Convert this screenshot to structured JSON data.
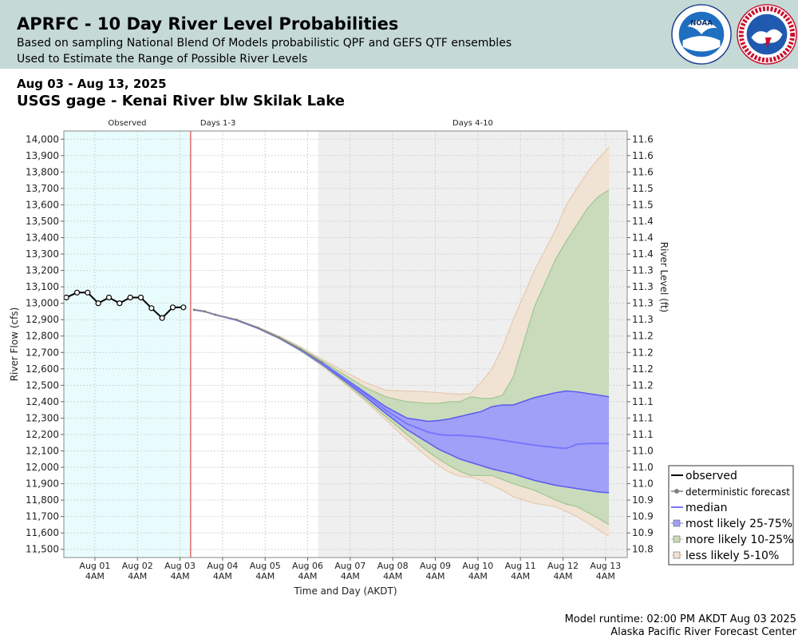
{
  "header": {
    "title": "APRFC - 10 Day River Level Probabilities",
    "subtitle_1": "Based on sampling National Blend Of Models probabilistic QPF and GEFS QTF ensembles",
    "subtitle_2": "Used to Estimate the Range of Possible River Levels",
    "logos": [
      "noaa-logo",
      "national-weather-service-logo"
    ]
  },
  "date_range": "Aug 03 - Aug 13, 2025",
  "gage": "USGS gage - Kenai River blw Skilak Lake",
  "footer": {
    "runtime": "Model runtime: 02:00 PM AKDT Aug 03 2025",
    "center": "Alaska Pacific River Forecast Center"
  },
  "colors": {
    "observed_bg": "#e9fcfd",
    "days4_10_bg": "#efefef",
    "now_line": "#e02020",
    "observed": "#000000",
    "deterministic": "#808080",
    "median": "#7777ff",
    "band_25_75": "#a0a0f8",
    "band_10_25": "#c9dbbb",
    "band_5_10": "#f0e3d4"
  },
  "chart_data": {
    "type": "line",
    "xlabel": "Time and Day (AKDT)",
    "ylabel_left": "River Flow (cfs)",
    "ylabel_right": "River Level (ft)",
    "ylim": [
      11450,
      14050
    ],
    "x_unit": "days after Aug 01 00:00 AKDT",
    "xlim": [
      -0.56,
      12.68
    ],
    "periods": [
      {
        "label": "Observed",
        "start": -0.56,
        "end": 2.42
      },
      {
        "label": "Days 1-3",
        "start": 2.42,
        "end": 5.42
      },
      {
        "label": "Days 4-10",
        "start": 5.42,
        "end": 12.68
      }
    ],
    "x_ticks": [
      {
        "day": "Aug 01",
        "time": "4AM",
        "x": 0.17
      },
      {
        "day": "Aug 02",
        "time": "4AM",
        "x": 1.17
      },
      {
        "day": "Aug 03",
        "time": "4AM",
        "x": 2.17
      },
      {
        "day": "Aug 04",
        "time": "4AM",
        "x": 3.17
      },
      {
        "day": "Aug 05",
        "time": "4AM",
        "x": 4.17
      },
      {
        "day": "Aug 06",
        "time": "4AM",
        "x": 5.17
      },
      {
        "day": "Aug 07",
        "time": "4AM",
        "x": 6.17
      },
      {
        "day": "Aug 08",
        "time": "4AM",
        "x": 7.17
      },
      {
        "day": "Aug 09",
        "time": "4AM",
        "x": 8.17
      },
      {
        "day": "Aug 10",
        "time": "4AM",
        "x": 9.17
      },
      {
        "day": "Aug 11",
        "time": "4AM",
        "x": 10.17
      },
      {
        "day": "Aug 12",
        "time": "4AM",
        "x": 11.17
      },
      {
        "day": "Aug 13",
        "time": "4AM",
        "x": 12.17
      }
    ],
    "y_ticks_left": [
      "11,500",
      "11,600",
      "11,700",
      "11,800",
      "11,900",
      "12,000",
      "12,100",
      "12,200",
      "12,300",
      "12,400",
      "12,500",
      "12,600",
      "12,700",
      "12,800",
      "12,900",
      "13,000",
      "13,100",
      "13,200",
      "13,300",
      "13,400",
      "13,500",
      "13,600",
      "13,700",
      "13,800",
      "13,900",
      "14,000"
    ],
    "y_ticks_right": [
      "10.8",
      "10.9",
      "10.9",
      "10.9",
      "11.0",
      "11.0",
      "11.0",
      "11.1",
      "11.1",
      "11.1",
      "11.2",
      "11.2",
      "11.2",
      "11.2",
      "11.3",
      "11.3",
      "11.3",
      "11.3",
      "11.4",
      "11.4",
      "11.4",
      "11.5",
      "11.5",
      "11.6",
      "11.6",
      "11.6"
    ],
    "legend": [
      {
        "label": "observed",
        "key": "observed"
      },
      {
        "label": "deterministic forecast",
        "key": "deterministic"
      },
      {
        "label": "median",
        "key": "median"
      },
      {
        "label": "most likely 25-75%",
        "key": "band_25_75"
      },
      {
        "label": "more likely 10-25%",
        "key": "band_10_25"
      },
      {
        "label": "less likely 5-10%",
        "key": "band_5_10"
      }
    ],
    "observed": {
      "x": [
        -0.5,
        -0.25,
        0.0,
        0.25,
        0.5,
        0.75,
        1.0,
        1.25,
        1.5,
        1.75,
        2.0,
        2.25
      ],
      "y": [
        13035,
        13065,
        13065,
        13000,
        13035,
        13000,
        13035,
        13035,
        12970,
        12910,
        12975,
        12975
      ]
    },
    "deterministic": {
      "x": [
        2.5,
        2.75,
        3.0,
        3.5,
        4.0,
        4.5,
        5.0,
        5.5
      ],
      "y": [
        12960,
        12950,
        12930,
        12900,
        12850,
        12790,
        12720,
        12640
      ]
    },
    "band_x": [
      2.5,
      2.75,
      3.0,
      3.5,
      4.0,
      4.5,
      5.0,
      5.5,
      6.0,
      6.5,
      7.0,
      7.5,
      8.0,
      8.25,
      8.5,
      8.75,
      9.0,
      9.25,
      9.5,
      9.75,
      10.0,
      10.5,
      11.0,
      11.25,
      11.5,
      11.75,
      12.0,
      12.25
    ],
    "p05": [
      12960,
      12950,
      12930,
      12895,
      12845,
      12785,
      12710,
      12620,
      12520,
      12410,
      12290,
      12170,
      12060,
      12010,
      11970,
      11945,
      11940,
      11920,
      11890,
      11860,
      11820,
      11780,
      11760,
      11730,
      11700,
      11660,
      11620,
      11580
    ],
    "p10": [
      12960,
      12950,
      12930,
      12895,
      12845,
      12785,
      12710,
      12625,
      12525,
      12420,
      12310,
      12200,
      12095,
      12050,
      12010,
      11975,
      11950,
      11950,
      11950,
      11925,
      11900,
      11860,
      11800,
      11775,
      11760,
      11725,
      11690,
      11650
    ],
    "p25": [
      12960,
      12950,
      12930,
      12897,
      12848,
      12788,
      12715,
      12630,
      12535,
      12435,
      12330,
      12230,
      12150,
      12110,
      12080,
      12050,
      12030,
      12010,
      11990,
      11975,
      11960,
      11920,
      11890,
      11880,
      11870,
      11860,
      11850,
      11845
    ],
    "p50": [
      12960,
      12950,
      12930,
      12897,
      12848,
      12788,
      12715,
      12635,
      12545,
      12450,
      12350,
      12265,
      12215,
      12200,
      12195,
      12195,
      12190,
      12185,
      12175,
      12165,
      12155,
      12135,
      12120,
      12115,
      12140,
      12145,
      12145,
      12145
    ],
    "p75": [
      12960,
      12950,
      12930,
      12898,
      12850,
      12790,
      12720,
      12640,
      12550,
      12460,
      12370,
      12300,
      12280,
      12285,
      12295,
      12310,
      12325,
      12340,
      12370,
      12380,
      12380,
      12425,
      12455,
      12465,
      12460,
      12450,
      12440,
      12430
    ],
    "p90": [
      12960,
      12950,
      12930,
      12900,
      12852,
      12795,
      12725,
      12650,
      12570,
      12490,
      12430,
      12400,
      12390,
      12390,
      12400,
      12400,
      12430,
      12420,
      12420,
      12440,
      12550,
      12980,
      13270,
      13380,
      13480,
      13580,
      13650,
      13690
    ],
    "p95": [
      12960,
      12950,
      12930,
      12900,
      12855,
      12800,
      12735,
      12660,
      12590,
      12520,
      12470,
      12465,
      12460,
      12455,
      12450,
      12445,
      12450,
      12520,
      12600,
      12730,
      12900,
      13200,
      13450,
      13600,
      13700,
      13800,
      13880,
      13950
    ]
  }
}
